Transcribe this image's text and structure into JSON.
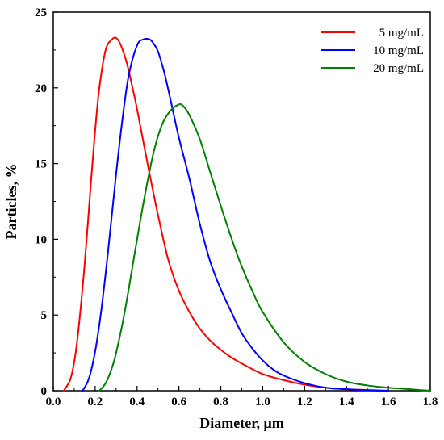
{
  "chart_data": {
    "type": "line",
    "title": "",
    "xlabel": "Diameter, μm",
    "ylabel": "Particles, %",
    "xlim": [
      0.0,
      1.8
    ],
    "ylim": [
      0,
      25
    ],
    "xticks": [
      "0.0",
      "0.2",
      "0.4",
      "0.6",
      "0.8",
      "1.0",
      "1.2",
      "1.4",
      "1.6",
      "1.8"
    ],
    "yticks": [
      "0",
      "5",
      "10",
      "15",
      "20",
      "25"
    ],
    "grid": false,
    "legend_position": "top-right",
    "series": [
      {
        "name": "5 mg/mL",
        "color": "#ff0000",
        "x": [
          0.05,
          0.08,
          0.1,
          0.12,
          0.15,
          0.18,
          0.2,
          0.22,
          0.25,
          0.28,
          0.3,
          0.32,
          0.35,
          0.38,
          0.4,
          0.45,
          0.5,
          0.55,
          0.6,
          0.65,
          0.7,
          0.75,
          0.8,
          0.85,
          0.9,
          1.0,
          1.1,
          1.2,
          1.3,
          1.4,
          1.5,
          1.6
        ],
        "y": [
          0.0,
          0.7,
          1.9,
          4.0,
          8.4,
          13.8,
          17.2,
          20.0,
          22.5,
          23.2,
          23.3,
          22.9,
          21.7,
          19.9,
          18.6,
          15.0,
          11.6,
          8.6,
          6.6,
          5.2,
          4.1,
          3.3,
          2.7,
          2.2,
          1.8,
          1.1,
          0.7,
          0.4,
          0.2,
          0.1,
          0.05,
          0.0
        ]
      },
      {
        "name": "10 mg/mL",
        "color": "#0000ff",
        "x": [
          0.14,
          0.17,
          0.2,
          0.23,
          0.26,
          0.3,
          0.33,
          0.36,
          0.4,
          0.43,
          0.46,
          0.48,
          0.5,
          0.53,
          0.56,
          0.6,
          0.65,
          0.7,
          0.75,
          0.8,
          0.85,
          0.9,
          0.95,
          1.0,
          1.05,
          1.1,
          1.2,
          1.3,
          1.4,
          1.5,
          1.6
        ],
        "y": [
          0.0,
          0.8,
          2.6,
          5.4,
          9.0,
          14.3,
          17.9,
          20.8,
          22.8,
          23.2,
          23.2,
          22.9,
          22.4,
          21.0,
          19.2,
          16.7,
          14.0,
          11.0,
          8.5,
          6.7,
          5.2,
          3.8,
          2.8,
          2.0,
          1.4,
          1.0,
          0.5,
          0.2,
          0.1,
          0.03,
          0.0
        ]
      },
      {
        "name": "20 mg/mL",
        "color": "#008000",
        "x": [
          0.22,
          0.25,
          0.28,
          0.3,
          0.33,
          0.36,
          0.4,
          0.44,
          0.48,
          0.52,
          0.56,
          0.6,
          0.62,
          0.65,
          0.7,
          0.75,
          0.8,
          0.85,
          0.9,
          0.95,
          1.0,
          1.1,
          1.2,
          1.3,
          1.4,
          1.5,
          1.6,
          1.7,
          1.8
        ],
        "y": [
          0.0,
          0.5,
          1.5,
          2.5,
          4.4,
          6.7,
          10.0,
          13.1,
          15.8,
          17.6,
          18.5,
          18.9,
          18.8,
          18.2,
          16.6,
          14.4,
          12.2,
          10.1,
          8.2,
          6.6,
          5.2,
          3.2,
          1.9,
          1.1,
          0.6,
          0.35,
          0.2,
          0.1,
          0.0
        ]
      }
    ]
  }
}
